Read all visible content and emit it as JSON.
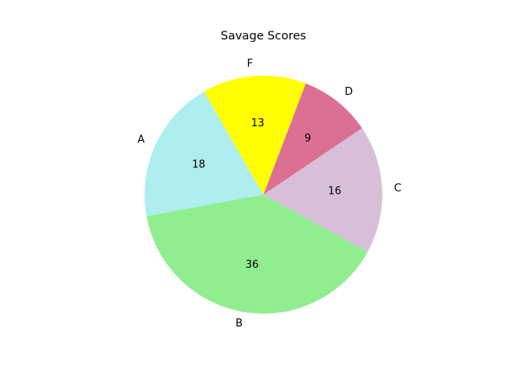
{
  "chart_data": {
    "type": "pie",
    "title": "Savage Scores",
    "start_angle_deg": 120,
    "direction": "counterclockwise",
    "slices": [
      {
        "label": "A",
        "value": 18,
        "color": "#afeeee"
      },
      {
        "label": "B",
        "value": 36,
        "color": "#90ee90"
      },
      {
        "label": "C",
        "value": 16,
        "color": "#d8bfd8"
      },
      {
        "label": "D",
        "value": 9,
        "color": "#db7093"
      },
      {
        "label": "F",
        "value": 13,
        "color": "#ffff00"
      }
    ],
    "legend": "none"
  }
}
